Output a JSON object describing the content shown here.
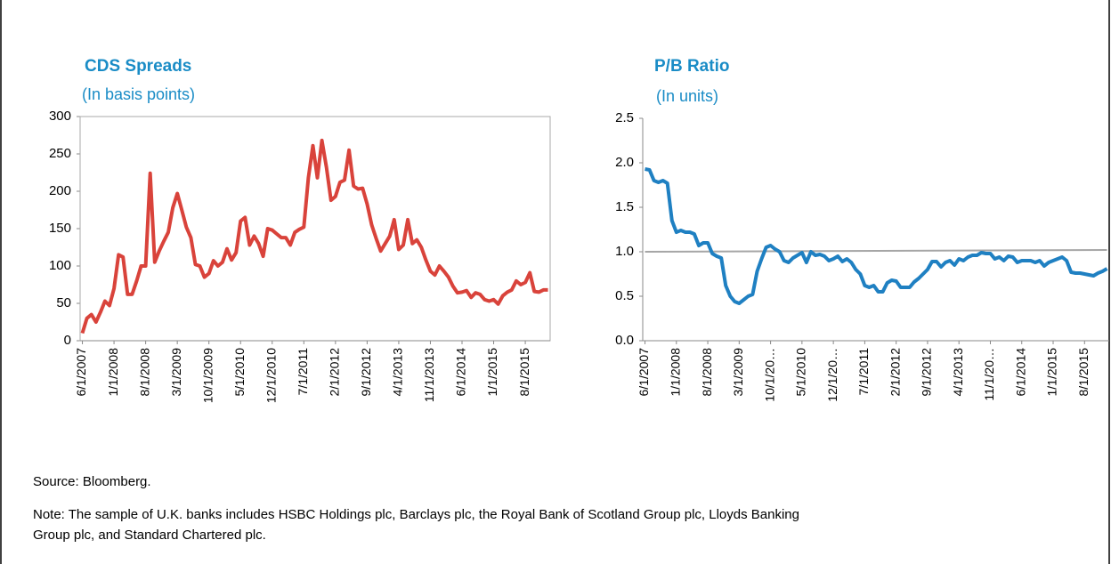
{
  "chart_data": [
    {
      "type": "line",
      "title": "CDS Spreads",
      "subtitle": "(In basis points)",
      "categories": [
        "6/1/2007",
        null,
        null,
        null,
        null,
        null,
        null,
        "1/1/2008",
        null,
        null,
        null,
        null,
        null,
        null,
        "8/1/2008",
        null,
        null,
        null,
        null,
        null,
        null,
        "3/1/2009",
        null,
        null,
        null,
        null,
        null,
        null,
        "10/1/2009",
        null,
        null,
        null,
        null,
        null,
        null,
        "5/1/2010",
        null,
        null,
        null,
        null,
        null,
        null,
        "12/1/2010",
        null,
        null,
        null,
        null,
        null,
        null,
        "7/1/2011",
        null,
        null,
        null,
        null,
        null,
        null,
        "2/1/2012",
        null,
        null,
        null,
        null,
        null,
        null,
        "9/1/2012",
        null,
        null,
        null,
        null,
        null,
        null,
        "4/1/2013",
        null,
        null,
        null,
        null,
        null,
        null,
        "11/1/2013",
        null,
        null,
        null,
        null,
        null,
        null,
        "6/1/2014",
        null,
        null,
        null,
        null,
        null,
        null,
        "1/1/2015",
        null,
        null,
        null,
        null,
        null,
        null,
        "8/1/2015",
        null,
        null,
        null,
        null,
        null
      ],
      "series": [
        {
          "color": "#d9433b",
          "values": [
            10,
            30,
            35,
            25,
            38,
            53,
            47,
            70,
            115,
            112,
            62,
            62,
            80,
            100,
            100,
            224,
            105,
            120,
            133,
            145,
            178,
            197,
            175,
            152,
            138,
            102,
            100,
            85,
            90,
            107,
            100,
            105,
            123,
            108,
            118,
            160,
            165,
            128,
            140,
            130,
            113,
            150,
            148,
            143,
            138,
            138,
            128,
            145,
            149,
            152,
            218,
            261,
            218,
            268,
            232,
            188,
            193,
            212,
            215,
            255,
            207,
            203,
            204,
            183,
            155,
            137,
            120,
            130,
            140,
            162,
            122,
            128,
            162,
            130,
            135,
            125,
            108,
            93,
            88,
            100,
            93,
            85,
            73,
            64,
            65,
            67,
            58,
            64,
            62,
            55,
            53,
            55,
            49,
            60,
            65,
            68,
            80,
            75,
            78,
            91,
            66,
            65,
            68,
            68
          ]
        }
      ],
      "ylim": [
        0,
        300
      ],
      "yticks": [
        0,
        50,
        100,
        150,
        200,
        250,
        300
      ]
    },
    {
      "type": "line",
      "title": "P/B Ratio",
      "subtitle": "(In units)",
      "categories": [
        "6/1/2007",
        null,
        null,
        null,
        null,
        null,
        null,
        "1/1/2008",
        null,
        null,
        null,
        null,
        null,
        null,
        "8/1/2008",
        null,
        null,
        null,
        null,
        null,
        null,
        "3/1/2009",
        null,
        null,
        null,
        null,
        null,
        null,
        "10/1/20…",
        null,
        null,
        null,
        null,
        null,
        null,
        "5/1/2010",
        null,
        null,
        null,
        null,
        null,
        null,
        "12/1/20…",
        null,
        null,
        null,
        null,
        null,
        null,
        "7/1/2011",
        null,
        null,
        null,
        null,
        null,
        null,
        "2/1/2012",
        null,
        null,
        null,
        null,
        null,
        null,
        "9/1/2012",
        null,
        null,
        null,
        null,
        null,
        null,
        "4/1/2013",
        null,
        null,
        null,
        null,
        null,
        null,
        "11/1/20…",
        null,
        null,
        null,
        null,
        null,
        null,
        "6/1/2014",
        null,
        null,
        null,
        null,
        null,
        null,
        "1/1/2015",
        null,
        null,
        null,
        null,
        null,
        null,
        "8/1/2015",
        null,
        null,
        null,
        null,
        null
      ],
      "series": [
        {
          "color": "#1f80c2",
          "values": [
            1.93,
            1.92,
            1.8,
            1.78,
            1.8,
            1.77,
            1.35,
            1.22,
            1.24,
            1.22,
            1.22,
            1.2,
            1.07,
            1.1,
            1.1,
            0.98,
            0.95,
            0.93,
            0.62,
            0.5,
            0.44,
            0.42,
            0.46,
            0.5,
            0.52,
            0.78,
            0.92,
            1.05,
            1.07,
            1.03,
            1.0,
            0.9,
            0.88,
            0.93,
            0.96,
            0.99,
            0.88,
            1.0,
            0.96,
            0.97,
            0.95,
            0.9,
            0.92,
            0.95,
            0.89,
            0.92,
            0.88,
            0.8,
            0.75,
            0.62,
            0.6,
            0.62,
            0.55,
            0.55,
            0.65,
            0.68,
            0.67,
            0.6,
            0.6,
            0.6,
            0.66,
            0.7,
            0.75,
            0.8,
            0.89,
            0.89,
            0.83,
            0.88,
            0.9,
            0.85,
            0.92,
            0.9,
            0.94,
            0.96,
            0.96,
            0.99,
            0.98,
            0.98,
            0.92,
            0.94,
            0.9,
            0.95,
            0.94,
            0.88,
            0.9,
            0.9,
            0.9,
            0.88,
            0.9,
            0.84,
            0.88,
            0.9,
            0.92,
            0.94,
            0.9,
            0.77,
            0.76,
            0.76,
            0.75,
            0.74,
            0.73,
            0.76,
            0.78,
            0.81
          ]
        }
      ],
      "trend": {
        "color": "#a6a6a6",
        "values": [
          1.0,
          1.02
        ]
      },
      "ylim": [
        0,
        2.5
      ],
      "yticks": [
        {
          "value": 0,
          "label": "0.0"
        },
        0.5,
        {
          "value": 1,
          "label": "1.0"
        },
        1.5,
        {
          "value": 2,
          "label": "2.0"
        },
        2.5
      ]
    }
  ],
  "source": "Source: Bloomberg.",
  "note": [
    "Note: The sample of U.K. banks includes HSBC Holdings plc, Barclays plc, the Royal Bank of Scotland Group plc, Lloyds Banking",
    "Group plc, and Standard Chartered plc."
  ]
}
